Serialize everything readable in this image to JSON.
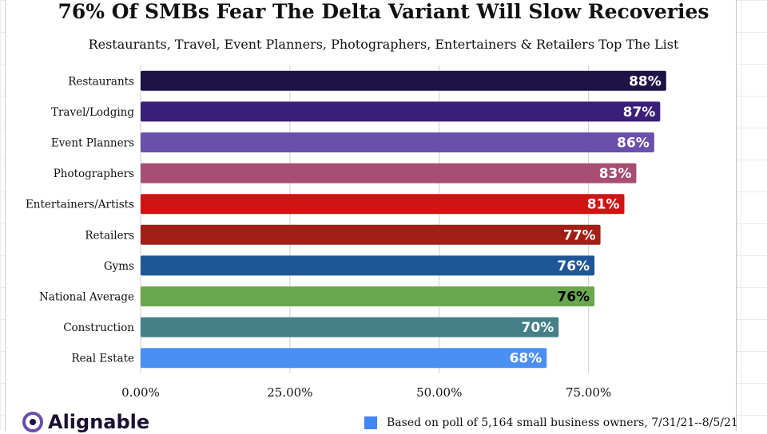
{
  "chart_data": {
    "type": "bar",
    "orientation": "horizontal",
    "title": "76% Of SMBs Fear The Delta Variant Will Slow Recoveries",
    "subtitle": "Restaurants, Travel, Event Planners, Photographers, Entertainers & Retailers Top The List",
    "categories": [
      "Restaurants",
      "Travel/Lodging",
      "Event Planners",
      "Photographers",
      "Entertainers/Artists",
      "Retailers",
      "Gyms",
      "National Average",
      "Construction",
      "Real Estate"
    ],
    "values": [
      88,
      87,
      86,
      83,
      81,
      77,
      76,
      76,
      70,
      68
    ],
    "value_labels": [
      "88%",
      "87%",
      "86%",
      "83%",
      "81%",
      "77%",
      "76%",
      "76%",
      "70%",
      "68%"
    ],
    "colors": [
      "#1f1245",
      "#3a1f7a",
      "#6a4fab",
      "#a84d74",
      "#cf1414",
      "#a11f16",
      "#1f5698",
      "#6aa84f",
      "#458089",
      "#4a8ff2"
    ],
    "label_colors": [
      "#ffffff",
      "#ffffff",
      "#ffffff",
      "#ffffff",
      "#ffffff",
      "#ffffff",
      "#ffffff",
      "#000000",
      "#ffffff",
      "#ffffff"
    ],
    "xlim": [
      0,
      100
    ],
    "xticks": [
      0,
      25,
      50,
      75
    ],
    "xtick_labels": [
      "0.00%",
      "25.00%",
      "50.00%",
      "75.00%"
    ],
    "grid": true,
    "xlabel": "",
    "ylabel": ""
  },
  "footer": {
    "logo_text": "Alignable",
    "note": "Based on poll of 5,164 small business owners, 7/31/21--8/5/21",
    "note_color": "#4285f4"
  }
}
